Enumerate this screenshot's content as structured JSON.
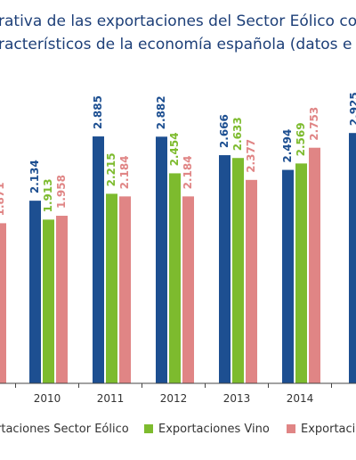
{
  "title_lines": [
    "rativa de las exportaciones del Sector Eólico co",
    "racterísticos de la economía española (datos e"
  ],
  "colors": {
    "eolico": "#1d4f91",
    "vino": "#7dbb2e",
    "third": "#e08585",
    "axis": "#444444"
  },
  "chart_data": {
    "type": "bar",
    "title": "",
    "categories": [
      "2010",
      "2011",
      "2012",
      "2013",
      "2014"
    ],
    "series": [
      {
        "name": "rtaciones Sector Eólico",
        "values": [
          2.134,
          2.885,
          2.882,
          2.666,
          2.494
        ],
        "labels": [
          "2.134",
          "2.885",
          "2.882",
          "2.666",
          "2.494"
        ]
      },
      {
        "name": "Exportaciones Vino",
        "values": [
          1.913,
          2.215,
          2.454,
          2.633,
          2.569
        ],
        "labels": [
          "1.913",
          "2.215",
          "2.454",
          "2.633",
          "2.569"
        ]
      },
      {
        "name": "Exportacio",
        "values": [
          1.958,
          2.184,
          2.184,
          2.377,
          2.753
        ],
        "labels": [
          "1.958",
          "2.184",
          "2.184",
          "2.377",
          "2.753"
        ]
      }
    ],
    "partial": {
      "prev_third_value": 1.871,
      "prev_third_label": "1.871",
      "next_eolico_value": 2.925,
      "next_eolico_label": "2.925"
    },
    "ylim": [
      0,
      3.2
    ]
  }
}
